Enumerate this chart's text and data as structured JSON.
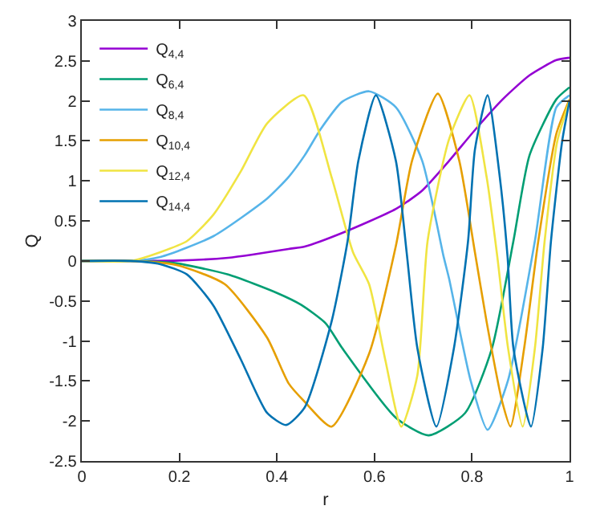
{
  "chart_data": {
    "type": "line",
    "xlabel": "r",
    "ylabel": "Q",
    "xlim": [
      0,
      1
    ],
    "ylim": [
      -2.5,
      3
    ],
    "xticks": [
      0,
      0.2,
      0.4,
      0.6,
      0.8,
      1
    ],
    "yticks": [
      -2.5,
      -2,
      -1.5,
      -1,
      -0.5,
      0,
      0.5,
      1,
      1.5,
      2,
      2.5,
      3
    ],
    "grid": false,
    "legend": "top left",
    "marker": "none",
    "line_style": "solid",
    "series": [
      {
        "name": "Q$_{4,4}$",
        "color": "#9400d3",
        "x": [
          0,
          0.1,
          0.2,
          0.3,
          0.35,
          0.424,
          0.457,
          0.534,
          0.644,
          0.698,
          0.753,
          0.808,
          0.863,
          0.918,
          0.973,
          1
        ],
        "values": [
          0,
          0,
          0.005,
          0.04,
          0.08,
          0.15,
          0.18,
          0.35,
          0.65,
          0.88,
          1.25,
          1.65,
          2.02,
          2.32,
          2.51,
          2.54
        ]
      },
      {
        "name": "Q$_{6,4}$",
        "color": "#009e73",
        "x": [
          0,
          0.1,
          0.194,
          0.3,
          0.4,
          0.45,
          0.5,
          0.534,
          0.644,
          0.711,
          0.786,
          0.841,
          0.885,
          0.918,
          0.973,
          1
        ],
        "values": [
          0,
          0,
          -0.03,
          -0.17,
          -0.4,
          -0.55,
          -0.78,
          -1.09,
          -1.96,
          -2.18,
          -1.9,
          -1.09,
          0.25,
          1.32,
          2.02,
          2.17
        ]
      },
      {
        "name": "Q$_{8,4}$",
        "color": "#56b4e9",
        "x": [
          0,
          0.1,
          0.161,
          0.27,
          0.38,
          0.424,
          0.457,
          0.49,
          0.534,
          0.589,
          0.644,
          0.698,
          0.742,
          0.753,
          0.797,
          0.832,
          0.874,
          0.929,
          0.973,
          1
        ],
        "values": [
          0,
          0,
          0.05,
          0.31,
          0.78,
          1.05,
          1.32,
          1.65,
          1.99,
          2.12,
          1.92,
          1.25,
          0.05,
          -0.22,
          -1.49,
          -2.11,
          -1.49,
          0.25,
          1.92,
          2.07
        ]
      },
      {
        "name": "Q$_{10,4}$",
        "color": "#e69f00",
        "x": [
          0,
          0.1,
          0.194,
          0.293,
          0.38,
          0.424,
          0.457,
          0.512,
          0.589,
          0.644,
          0.677,
          0.73,
          0.774,
          0.806,
          0.83,
          0.862,
          0.879,
          0.907,
          0.936,
          0.973,
          1
        ],
        "values": [
          0,
          0,
          -0.05,
          -0.29,
          -0.96,
          -1.53,
          -1.76,
          -2.07,
          -1.16,
          0.19,
          1.25,
          2.09,
          1.25,
          0.11,
          -0.76,
          -1.76,
          -2.07,
          -1.09,
          0.25,
          1.59,
          2.02
        ]
      },
      {
        "name": "Q$_{12,4}$",
        "color": "#f0e442",
        "x": [
          0,
          0.1,
          0.161,
          0.216,
          0.27,
          0.326,
          0.38,
          0.455,
          0.512,
          0.556,
          0.589,
          0.622,
          0.655,
          0.688,
          0.709,
          0.753,
          0.795,
          0.83,
          0.852,
          0.874,
          0.904,
          0.929,
          0.949,
          0.975,
          1
        ],
        "values": [
          0,
          0,
          0.11,
          0.25,
          0.58,
          1.12,
          1.72,
          2.07,
          1.05,
          0.11,
          -0.29,
          -1.23,
          -2.07,
          -1.43,
          0.25,
          1.52,
          2.07,
          1.05,
          0.05,
          -1.09,
          -2.07,
          -1.09,
          0.25,
          1.5,
          2.0
        ]
      },
      {
        "name": "Q$_{14,4}$",
        "color": "#0072b2",
        "x": [
          0,
          0.1,
          0.161,
          0.216,
          0.27,
          0.326,
          0.38,
          0.419,
          0.457,
          0.512,
          0.545,
          0.567,
          0.603,
          0.644,
          0.666,
          0.688,
          0.727,
          0.763,
          0.792,
          0.806,
          0.832,
          0.857,
          0.873,
          0.885,
          0.921,
          0.945,
          0.962,
          0.985,
          1
        ],
        "values": [
          0,
          0,
          -0.04,
          -0.17,
          -0.56,
          -1.23,
          -1.9,
          -2.05,
          -1.83,
          -0.76,
          0.25,
          1.25,
          2.07,
          1.25,
          0.11,
          -1.09,
          -2.07,
          -1.09,
          0.25,
          1.39,
          2.07,
          1.05,
          0.05,
          -1.09,
          -2.07,
          -1.09,
          0.25,
          1.5,
          2.0
        ]
      }
    ]
  }
}
